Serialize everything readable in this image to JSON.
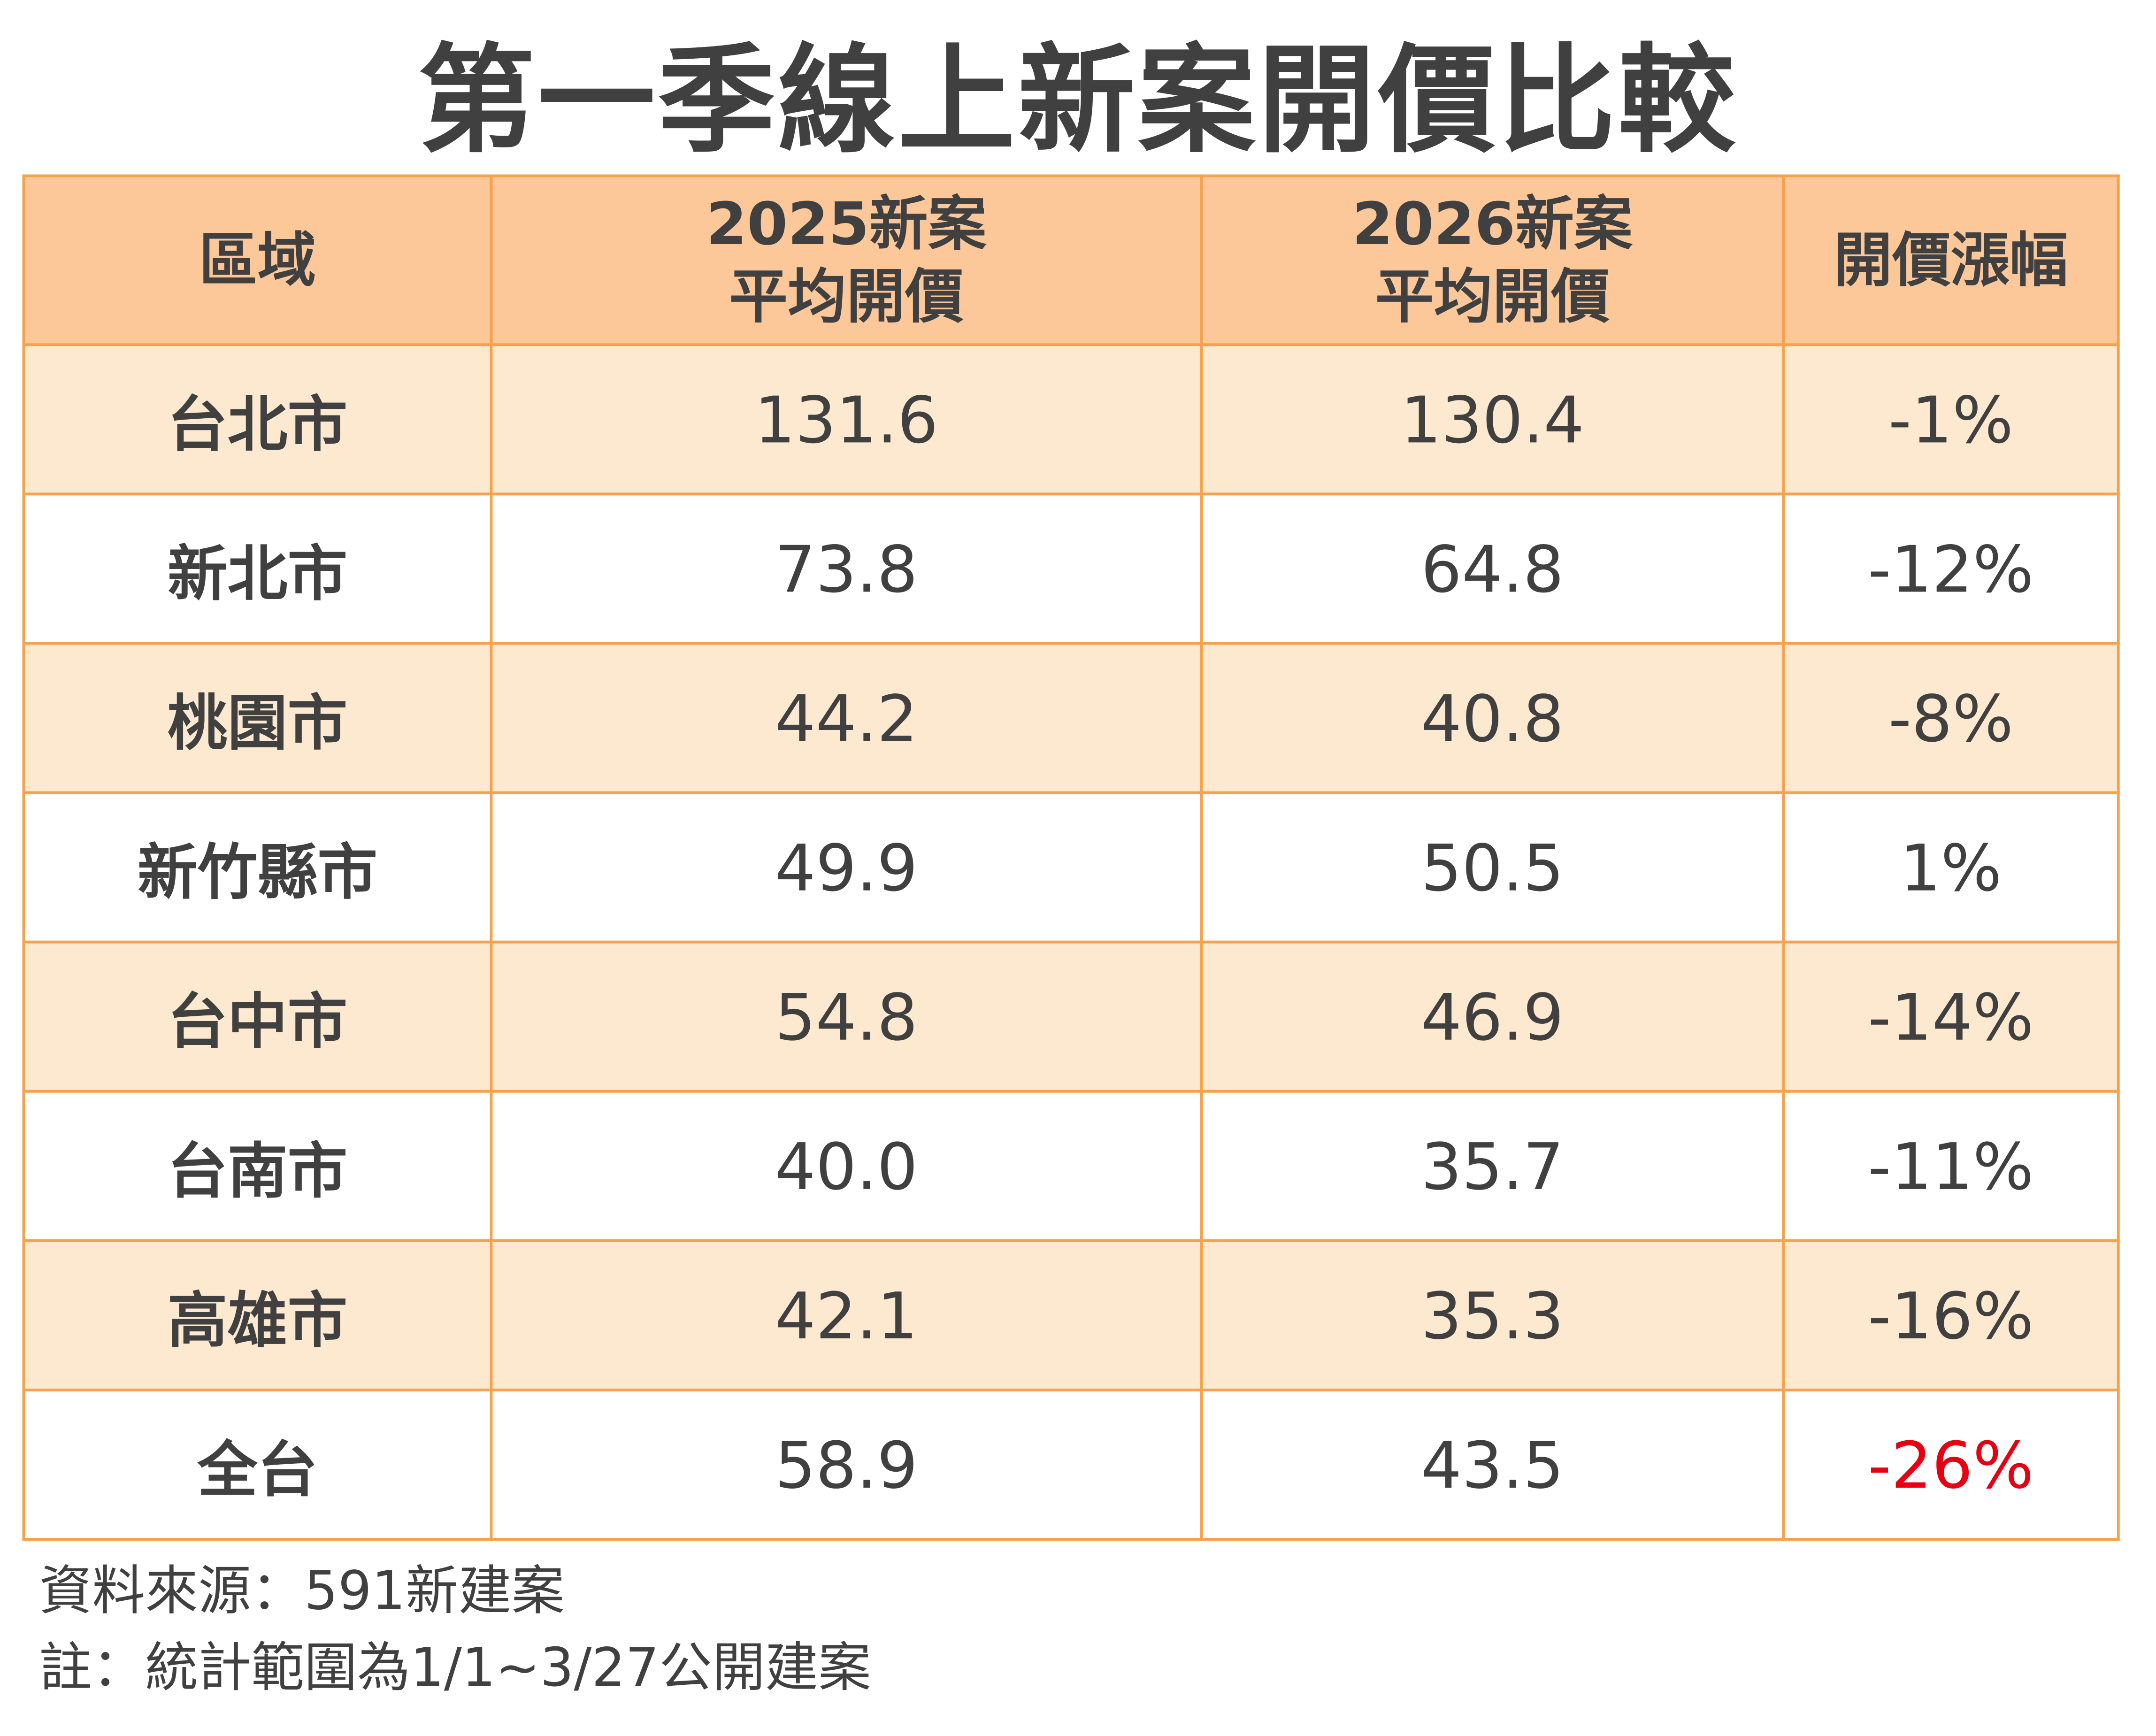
{
  "title": "第一季線上新案開價比較",
  "table": {
    "header": [
      [
        "區域"
      ],
      [
        "2025新案",
        "平均開價"
      ],
      [
        "2026新案",
        "平均開價"
      ],
      [
        "開價漲幅"
      ]
    ],
    "rows": [
      [
        "台北市",
        "131.6",
        "130.4",
        "-1%"
      ],
      [
        "新北市",
        "73.8",
        "64.8",
        "-12%"
      ],
      [
        "桃園市",
        "44.2",
        "40.8",
        "-8%"
      ],
      [
        "新竹縣市",
        "49.9",
        "50.5",
        "1%"
      ],
      [
        "台中市",
        "54.8",
        "46.9",
        "-14%"
      ],
      [
        "台南市",
        "40.0",
        "35.7",
        "-11%"
      ],
      [
        "高雄市",
        "42.1",
        "35.3",
        "-16%"
      ],
      [
        "全台",
        "58.9",
        "43.5",
        "-26%"
      ]
    ]
  },
  "notes": [
    "資料來源：591新建案",
    "註：統計範圍為1/1~3/27公開建案"
  ]
}
